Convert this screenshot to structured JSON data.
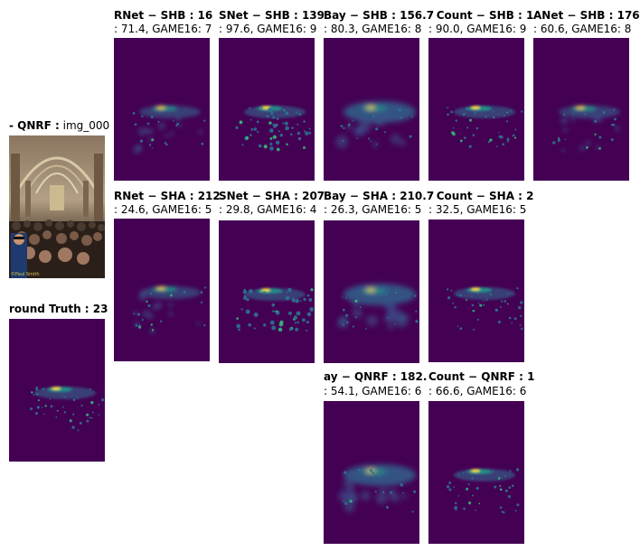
{
  "input_panel": {
    "title_bold": "- QNRF :",
    "title_rest": " img_000",
    "photo_watermark": "©Paul Smith"
  },
  "ground_truth": {
    "title_bold": "round Truth : 23"
  },
  "panels": [
    {
      "id": "shb-1",
      "title_bold": "RNet − SHB : 16",
      "subtitle": ": 71.4, GAME16: 7"
    },
    {
      "id": "shb-2",
      "title_bold": "SNet − SHB : 139",
      "subtitle": ": 97.6, GAME16: 9"
    },
    {
      "id": "shb-3",
      "title_bold": "Bay − SHB : 156.7",
      "subtitle": ": 80.3, GAME16: 8"
    },
    {
      "id": "shb-4",
      "title_bold": "· Count − SHB : 1",
      "subtitle": ": 90.0, GAME16: 9"
    },
    {
      "id": "shb-5",
      "title_bold": "ANet − SHB : 176",
      "subtitle": ": 60.6, GAME16: 8"
    },
    {
      "id": "sha-1",
      "title_bold": "RNet − SHA : 212",
      "subtitle": ": 24.6, GAME16: 5"
    },
    {
      "id": "sha-2",
      "title_bold": "SNet − SHA : 207",
      "subtitle": ": 29.8, GAME16: 4"
    },
    {
      "id": "sha-3",
      "title_bold": "Bay − SHA : 210.7",
      "subtitle": ": 26.3, GAME16: 5"
    },
    {
      "id": "sha-4",
      "title_bold": "· Count − SHA : 2",
      "subtitle": ": 32.5, GAME16: 5"
    },
    {
      "id": "qnrf-3",
      "title_bold": "ay − QNRF : 182.",
      "subtitle": ": 54.1, GAME16: 6"
    },
    {
      "id": "qnrf-4",
      "title_bold": "Count − QNRF : 1",
      "subtitle": ": 66.6, GAME16: 6"
    }
  ],
  "colors": {
    "colormap_low": "#440154",
    "colormap_mid": "#21918c",
    "colormap_high": "#fde725"
  }
}
